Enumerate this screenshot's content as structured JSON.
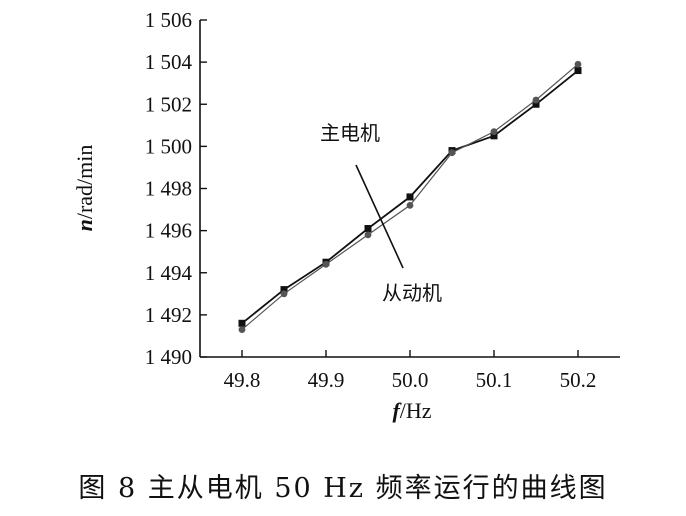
{
  "chart_data": {
    "type": "line",
    "xlabel": {
      "symbol": "f",
      "unit": "/Hz"
    },
    "ylabel": {
      "symbol": "n",
      "unit": "/rad/min"
    },
    "xlim": [
      49.75,
      50.25
    ],
    "ylim": [
      1490,
      1506
    ],
    "x_ticks": [
      49.8,
      49.9,
      50.0,
      50.1,
      50.2
    ],
    "x_tick_labels": [
      "49.8",
      "49.9",
      "50.0",
      "50.1",
      "50.2"
    ],
    "y_ticks": [
      1490,
      1492,
      1494,
      1496,
      1498,
      1500,
      1502,
      1504,
      1506
    ],
    "y_tick_labels": [
      "1 490",
      "1 492",
      "1 494",
      "1 496",
      "1 498",
      "1 500",
      "1 502",
      "1 504",
      "1 506"
    ],
    "grid": false,
    "series": [
      {
        "name": "主电机",
        "x": [
          49.8,
          49.85,
          49.9,
          49.95,
          50.0,
          50.05,
          50.1,
          50.15,
          50.2
        ],
        "y": [
          1491.6,
          1493.2,
          1494.5,
          1496.1,
          1497.6,
          1499.8,
          1500.5,
          1502.0,
          1503.6
        ],
        "color": "#111111",
        "marker": "square"
      },
      {
        "name": "从动机",
        "x": [
          49.8,
          49.85,
          49.9,
          49.95,
          50.0,
          50.05,
          50.1,
          50.15,
          50.2
        ],
        "y": [
          1491.3,
          1493.0,
          1494.4,
          1495.8,
          1497.2,
          1499.7,
          1500.7,
          1502.2,
          1503.9
        ],
        "color": "#555555",
        "marker": "circle"
      }
    ],
    "annotations": [
      "主电机",
      "从动机"
    ]
  },
  "caption": "图 8   主从电机 50 Hz 频率运行的曲线图"
}
